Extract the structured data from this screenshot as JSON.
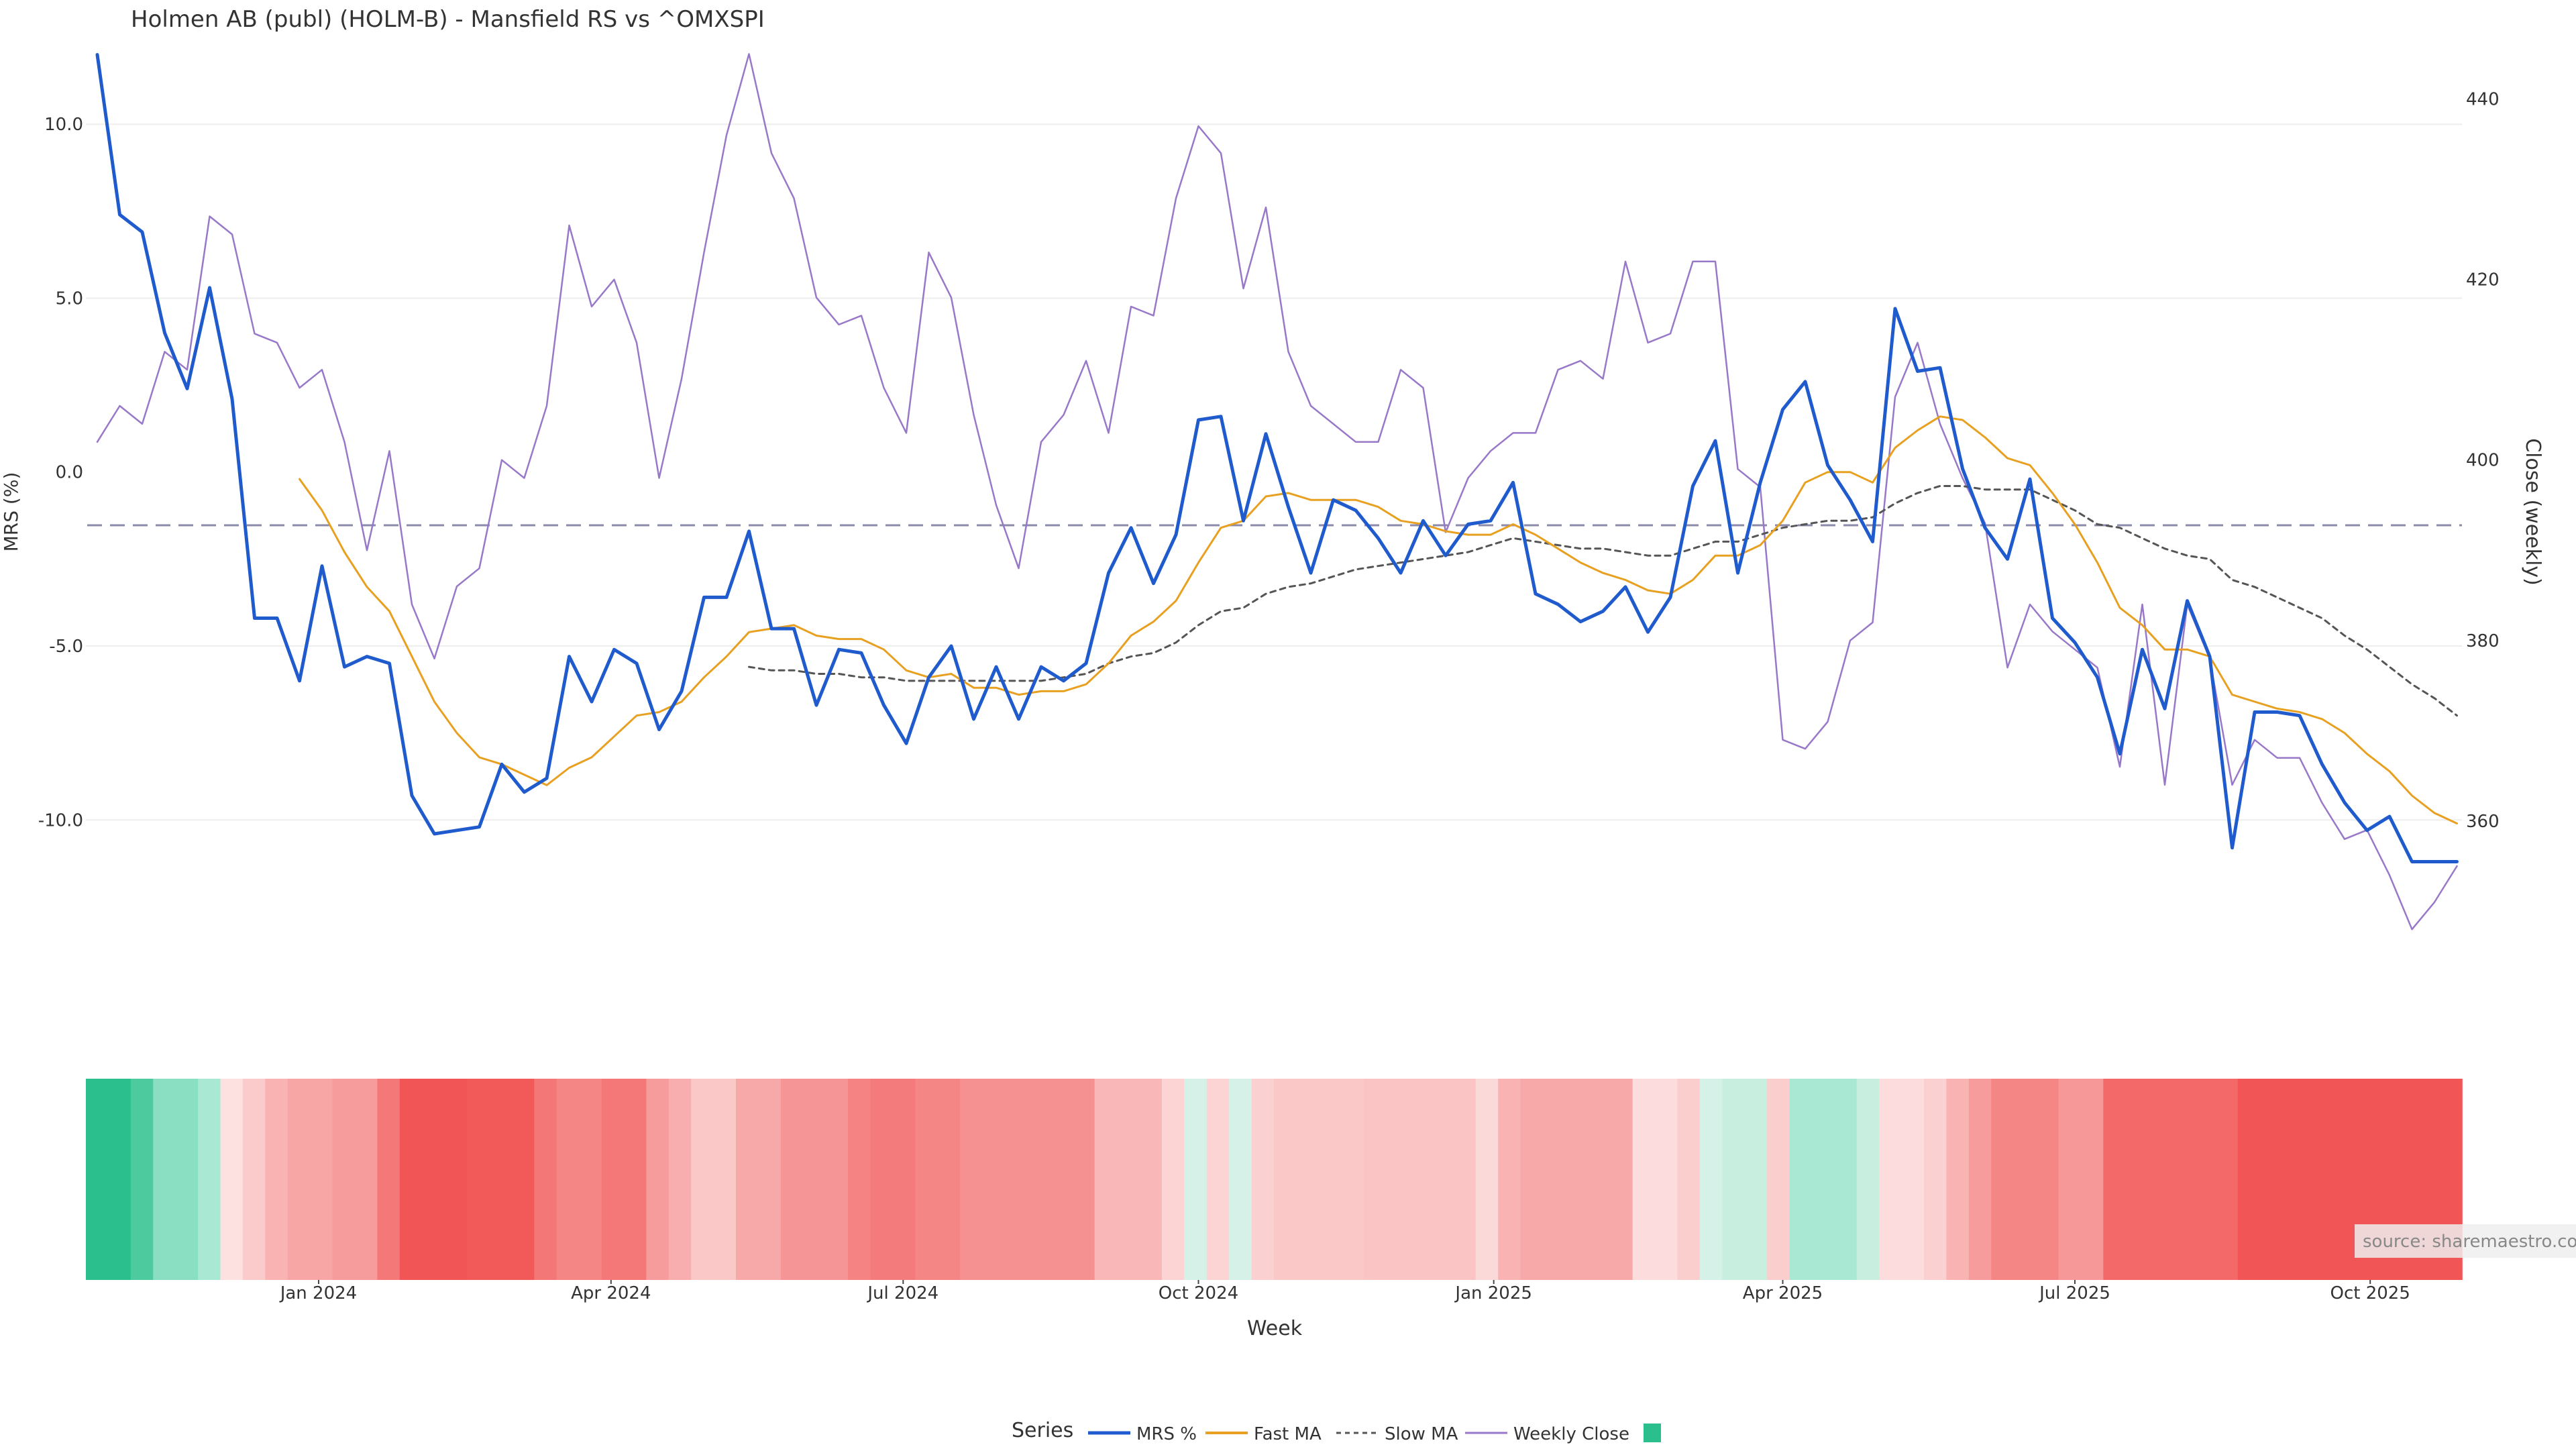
{
  "chart_data": {
    "type": "line",
    "title": "Holmen AB (publ) (HOLM-B) - Mansfield RS vs ^OMXSPI",
    "xlabel": "Week",
    "ylabel_left": "MRS (%)",
    "ylabel_right": "Close (weekly)",
    "ylim_left": [
      -14.7,
      12.8
    ],
    "ylim_right": [
      342,
      448
    ],
    "yticks_left": [
      10.0,
      5.0,
      0.0,
      -5.0,
      -10.0
    ],
    "yticks_left_labels": [
      "10.0",
      "5.0",
      "0.0",
      "-5.0",
      "-10.0"
    ],
    "yticks_right": [
      440,
      420,
      400,
      380,
      360
    ],
    "yticks_right_labels": [
      "440",
      "420",
      "400",
      "380",
      "360"
    ],
    "x_start": "2023-10-23",
    "x_interval": "weekly",
    "xticks": [
      {
        "label": "Jan 2024",
        "week": 9.85
      },
      {
        "label": "Apr 2024",
        "week": 22.86
      },
      {
        "label": "Jul 2024",
        "week": 35.86
      },
      {
        "label": "Oct 2024",
        "week": 49.0
      },
      {
        "label": "Jan 2025",
        "week": 62.14
      },
      {
        "label": "Apr 2025",
        "week": 75.0
      },
      {
        "label": "Jul 2025",
        "week": 88.0
      },
      {
        "label": "Oct 2025",
        "week": 101.14
      }
    ],
    "zero_line": 0,
    "series": [
      {
        "name": "MRS %",
        "color": "#1f5bcc",
        "axis": "left",
        "values": [
          12.0,
          7.4,
          6.9,
          4.0,
          2.4,
          5.3,
          2.1,
          -4.2,
          -4.2,
          -6.0,
          -2.7,
          -5.6,
          -5.3,
          -5.5,
          -9.3,
          -10.4,
          -10.3,
          -10.2,
          -8.4,
          -9.2,
          -8.8,
          -5.3,
          -6.6,
          -5.1,
          -5.5,
          -7.4,
          -6.3,
          -3.6,
          -3.6,
          -1.7,
          -4.5,
          -4.5,
          -6.7,
          -5.1,
          -5.2,
          -6.7,
          -7.8,
          -5.9,
          -5.0,
          -7.1,
          -5.6,
          -7.1,
          -5.6,
          -6.0,
          -5.5,
          -2.9,
          -1.6,
          -3.2,
          -1.8,
          1.5,
          1.6,
          -1.4,
          1.1,
          -1.0,
          -2.9,
          -0.8,
          -1.1,
          -1.9,
          -2.9,
          -1.4,
          -2.4,
          -1.5,
          -1.4,
          -0.3,
          -3.5,
          -3.8,
          -4.3,
          -4.0,
          -3.3,
          -4.6,
          -3.6,
          -0.4,
          0.9,
          -2.9,
          -0.3,
          1.8,
          2.6,
          0.2,
          -0.8,
          -2.0,
          4.7,
          2.9,
          3.0,
          0.1,
          -1.6,
          -2.5,
          -0.2,
          -4.2,
          -4.9,
          -5.9,
          -8.1,
          -5.1,
          -6.8,
          -3.7,
          -5.3,
          -10.8,
          -6.9,
          -6.9,
          -7.0,
          -8.4,
          -9.5,
          -10.3,
          -9.9,
          -11.2,
          -11.2,
          -11.2
        ],
        "linewidth": 5
      },
      {
        "name": "Fast MA",
        "color": "#e8a020",
        "axis": "left",
        "values": [
          null,
          null,
          null,
          null,
          null,
          null,
          null,
          null,
          null,
          -0.2,
          -1.1,
          -2.3,
          -3.3,
          -4.0,
          -5.3,
          -6.6,
          -7.5,
          -8.2,
          -8.4,
          -8.7,
          -9.0,
          -8.5,
          -8.2,
          -7.6,
          -7.0,
          -6.9,
          -6.6,
          -5.9,
          -5.3,
          -4.6,
          -4.5,
          -4.4,
          -4.7,
          -4.8,
          -4.8,
          -5.1,
          -5.7,
          -5.9,
          -5.8,
          -6.2,
          -6.2,
          -6.4,
          -6.3,
          -6.3,
          -6.1,
          -5.5,
          -4.7,
          -4.3,
          -3.7,
          -2.6,
          -1.6,
          -1.4,
          -0.7,
          -0.6,
          -0.8,
          -0.8,
          -0.8,
          -1.0,
          -1.4,
          -1.5,
          -1.7,
          -1.8,
          -1.8,
          -1.5,
          -1.8,
          -2.2,
          -2.6,
          -2.9,
          -3.1,
          -3.4,
          -3.5,
          -3.1,
          -2.4,
          -2.4,
          -2.1,
          -1.4,
          -0.3,
          0.0,
          0.0,
          -0.3,
          0.7,
          1.2,
          1.6,
          1.5,
          1.0,
          0.4,
          0.2,
          -0.6,
          -1.5,
          -2.6,
          -3.9,
          -4.4,
          -5.1,
          -5.1,
          -5.3,
          -6.4,
          -6.6,
          -6.8,
          -6.9,
          -7.1,
          -7.5,
          -8.1,
          -8.6,
          -9.3,
          -9.8,
          -10.1
        ],
        "linewidth": 3
      },
      {
        "name": "Slow MA",
        "color": "#555555",
        "axis": "left",
        "dashed": true,
        "values": [
          null,
          null,
          null,
          null,
          null,
          null,
          null,
          null,
          null,
          null,
          null,
          null,
          null,
          null,
          null,
          null,
          null,
          null,
          null,
          null,
          null,
          null,
          null,
          null,
          null,
          null,
          null,
          null,
          null,
          -5.6,
          -5.7,
          -5.7,
          -5.8,
          -5.8,
          -5.9,
          -5.9,
          -6.0,
          -6.0,
          -6.0,
          -6.0,
          -6.0,
          -6.0,
          -6.0,
          -5.9,
          -5.8,
          -5.5,
          -5.3,
          -5.2,
          -4.9,
          -4.4,
          -4.0,
          -3.9,
          -3.5,
          -3.3,
          -3.2,
          -3.0,
          -2.8,
          -2.7,
          -2.6,
          -2.5,
          -2.4,
          -2.3,
          -2.1,
          -1.9,
          -2.0,
          -2.1,
          -2.2,
          -2.2,
          -2.3,
          -2.4,
          -2.4,
          -2.2,
          -2.0,
          -2.0,
          -1.8,
          -1.6,
          -1.5,
          -1.4,
          -1.4,
          -1.3,
          -0.9,
          -0.6,
          -0.4,
          -0.4,
          -0.5,
          -0.5,
          -0.5,
          -0.8,
          -1.1,
          -1.5,
          -1.6,
          -1.9,
          -2.2,
          -2.4,
          -2.5,
          -3.1,
          -3.3,
          -3.6,
          -3.9,
          -4.2,
          -4.7,
          -5.1,
          -5.6,
          -6.1,
          -6.5,
          -7.0
        ],
        "linewidth": 3
      },
      {
        "name": "Weekly Close",
        "color": "#9878c8",
        "axis": "right",
        "values": [
          402,
          406,
          404,
          412,
          410,
          427,
          425,
          414,
          413,
          408,
          410,
          402,
          390,
          401,
          384,
          378,
          386,
          388,
          400,
          398,
          406,
          426,
          417,
          420,
          413,
          398,
          409,
          423,
          436,
          445,
          434,
          429,
          418,
          415,
          416,
          408,
          403,
          423,
          418,
          405,
          395,
          388,
          402,
          405,
          411,
          403,
          417,
          416,
          429,
          437,
          434,
          419,
          428,
          412,
          406,
          404,
          402,
          402,
          410,
          408,
          392,
          398,
          401,
          403,
          403,
          410,
          411,
          409,
          422,
          413,
          414,
          422,
          422,
          399,
          397,
          369,
          368,
          371,
          380,
          382,
          407,
          413,
          404,
          398,
          393,
          377,
          384,
          381,
          379,
          377,
          366,
          384,
          364,
          384,
          378,
          364,
          369,
          367,
          367,
          362,
          358,
          359,
          354,
          348,
          351,
          355
        ],
        "linewidth": 2.5
      }
    ],
    "heat_strip": {
      "legend_label": "",
      "legend_swatch": "#2bbf8e",
      "colors": [
        "#2bbf8e",
        "#2bbf8e",
        "#4ecb9e",
        "#8adfc3",
        "#8adfc3",
        "#a9e8d2",
        "#fde1e1",
        "#fbcaca",
        "#f9b3b3",
        "#f7a5a5",
        "#f7a5a5",
        "#f69c9c",
        "#f69c9c",
        "#f47878",
        "#f25555",
        "#f25555",
        "#f25555",
        "#f25a5a",
        "#f25a5a",
        "#f25a5a",
        "#f47777",
        "#f58686",
        "#f58686",
        "#f47878",
        "#f47878",
        "#f69c9c",
        "#f8aeae",
        "#fbc8c8",
        "#fbc8c8",
        "#f7a8a8",
        "#f7a8a8",
        "#f69595",
        "#f69595",
        "#f69595",
        "#f58383",
        "#f47b7b",
        "#f47b7b",
        "#f58686",
        "#f58686",
        "#f69191",
        "#f69191",
        "#f69191",
        "#f69191",
        "#f69191",
        "#f69191",
        "#fab7b7",
        "#fab7b7",
        "#fab7b7",
        "#fcd4d4",
        "#d6f2e8",
        "#fcd4d4",
        "#d6f2e8",
        "#fbd0d0",
        "#fbc8c8",
        "#fbc8c8",
        "#fbc8c8",
        "#fbc8c8",
        "#fbc4c4",
        "#fbc4c4",
        "#fbc4c4",
        "#fbc4c4",
        "#fbc4c4",
        "#fcd9d9",
        "#f9b3b3",
        "#f7a8a8",
        "#f7a8a8",
        "#f7a8a8",
        "#f7a8a8",
        "#f7a8a8",
        "#fcdcdc",
        "#fcdcdc",
        "#fbcece",
        "#d6f2e8",
        "#c8eedf",
        "#c8eedf",
        "#fbcece",
        "#a9e8d2",
        "#a9e8d2",
        "#a9e8d2",
        "#c8eedf",
        "#fcdcdc",
        "#fcdcdc",
        "#fbd0d0",
        "#f9b3b3",
        "#f69c9c",
        "#f58686",
        "#f58686",
        "#f58686",
        "#f69898",
        "#f69898",
        "#f36868",
        "#f36868",
        "#f36868",
        "#f36868",
        "#f36868",
        "#f36868",
        "#f25555",
        "#f25555",
        "#f25555",
        "#f25555",
        "#f25555",
        "#f25555",
        "#f25555",
        "#f25555",
        "#f25555",
        "#f25555"
      ]
    },
    "legend_title": "Series",
    "legend_position": "bottom-center",
    "source_label": "source: sharemaestro.com"
  }
}
